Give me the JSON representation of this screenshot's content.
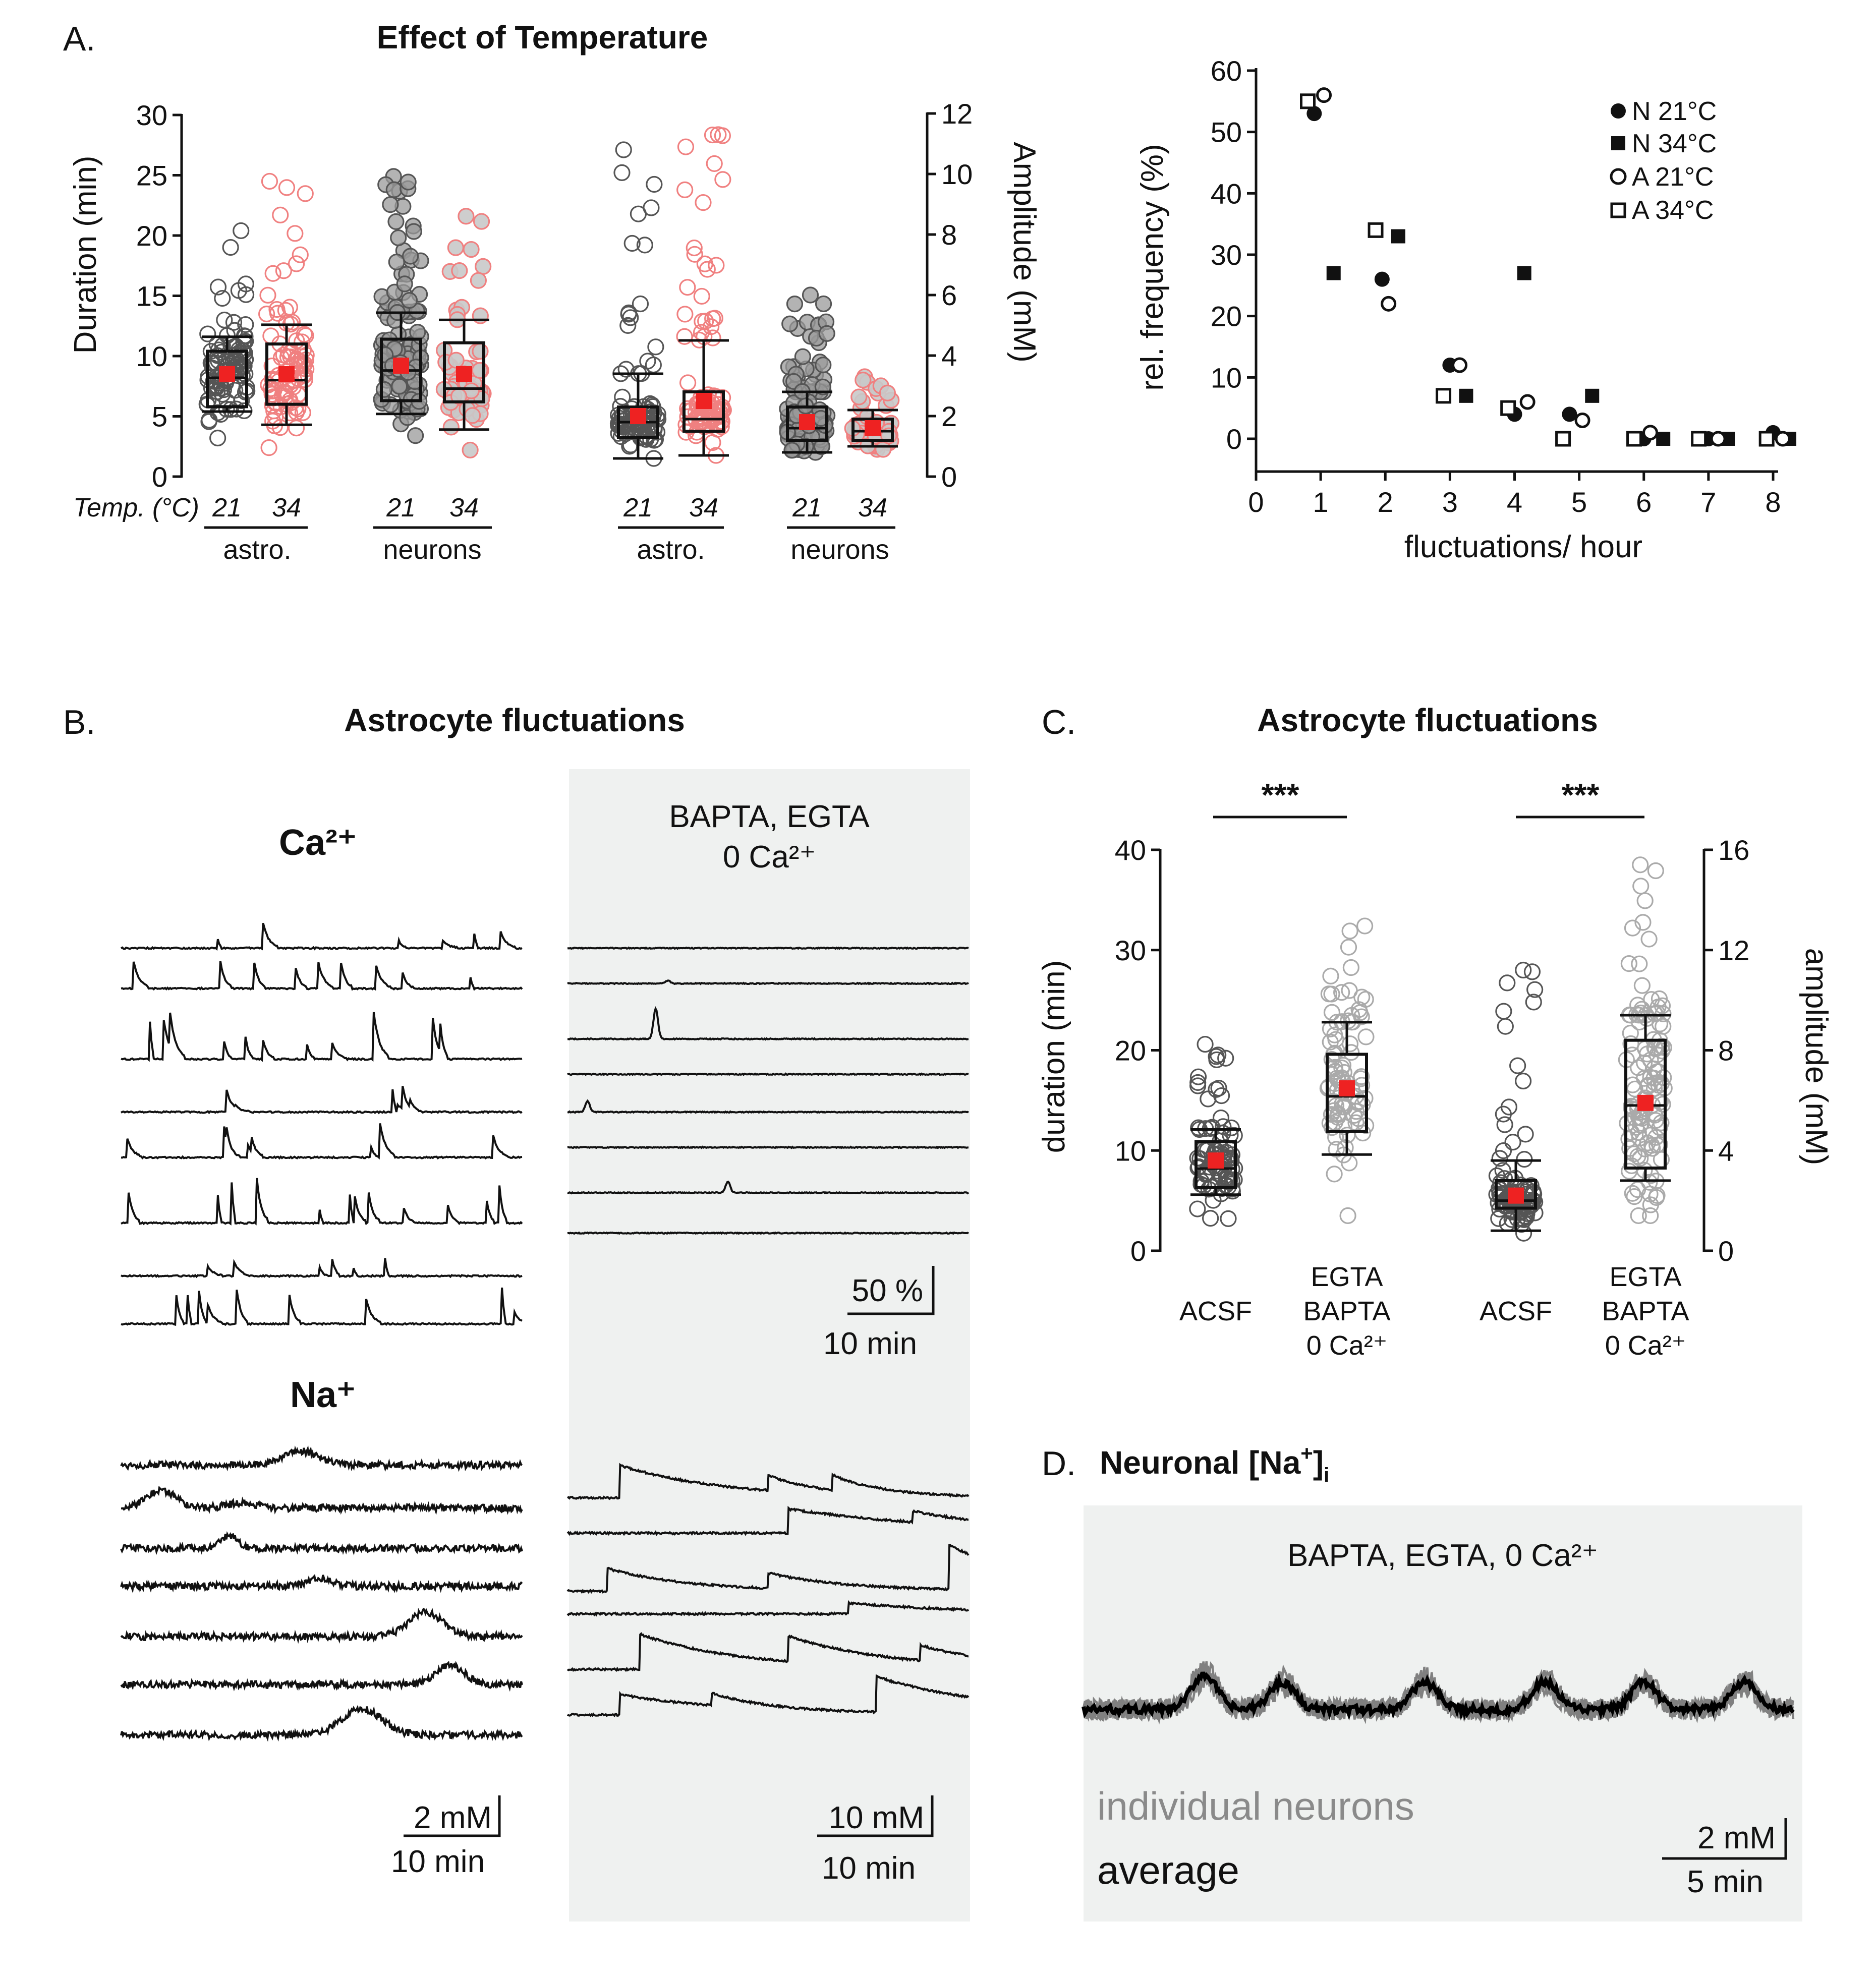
{
  "figure": {
    "panel_labels": [
      "A.",
      "B.",
      "C.",
      "D."
    ]
  },
  "panel_a": {
    "title": "Effect of Temperature",
    "temp_label": "Temp. (°C)",
    "temps": [
      "21",
      "34",
      "21",
      "34",
      "21",
      "34",
      "21",
      "34"
    ],
    "groups": [
      "astro.",
      "neurons",
      "astro.",
      "neurons"
    ]
  },
  "panel_b": {
    "title": "Astrocyte fluctuations",
    "ca_label": "Ca²⁺",
    "na_label": "Na⁺",
    "condition_line1": "BAPTA, EGTA",
    "condition_line2": "0 Ca²⁺",
    "scale_ca": [
      "50 %",
      "10 min"
    ],
    "scale_na_left": [
      "2 mM",
      "10 min"
    ],
    "scale_na_right": [
      "10 mM",
      "10 min"
    ]
  },
  "panel_c": {
    "title": "Astrocyte fluctuations",
    "sig": [
      "***",
      "***"
    ],
    "groups": [
      "ACSF",
      "EGTA\nBAPTA\n0 Ca²⁺",
      "ACSF",
      "EGTA\nBAPTA\n0 Ca²⁺"
    ]
  },
  "panel_d": {
    "title_prefix": "Neuronal [Na",
    "title_sup": "+",
    "title_mid": "]",
    "title_sub": "i",
    "condition": "BAPTA, EGTA, 0 Ca²⁺",
    "label_individual": "individual neurons",
    "label_average": "average",
    "scale": [
      "2 mM",
      "5 min"
    ]
  },
  "colors": {
    "black": "#111111",
    "red_mean": "#ee2222",
    "pink_points": "#f08080",
    "grey_points": "#999999",
    "shade_bg": "#eff1f0",
    "trace_grey": "#808080"
  },
  "chart_data": [
    {
      "id": "A1",
      "type": "box",
      "title": "Effect of Temperature",
      "ylabel": "Duration (min)",
      "ylim": [
        0,
        30
      ],
      "yticks": [
        0,
        5,
        10,
        15,
        20,
        25,
        30
      ],
      "categories": [
        "astro. 21",
        "astro. 34",
        "neurons 21",
        "neurons 34"
      ],
      "boxes": [
        {
          "q1": 5.8,
          "median": 8.2,
          "q3": 10.4,
          "whisker_low": 5.4,
          "whisker_high": 11.6,
          "mean": 8.5
        },
        {
          "q1": 6.0,
          "median": 8.0,
          "q3": 11.0,
          "whisker_low": 4.3,
          "whisker_high": 12.6,
          "mean": 8.5
        },
        {
          "q1": 6.3,
          "median": 8.8,
          "q3": 11.4,
          "whisker_low": 5.2,
          "whisker_high": 13.6,
          "mean": 9.2
        },
        {
          "q1": 6.2,
          "median": 7.3,
          "q3": 11.1,
          "whisker_low": 3.9,
          "whisker_high": 13.0,
          "mean": 8.5
        }
      ],
      "point_ranges": [
        [
          3.2,
          20.4
        ],
        [
          2.4,
          24.5
        ],
        [
          3.4,
          24.9
        ],
        [
          2.2,
          21.6
        ]
      ]
    },
    {
      "id": "A2",
      "type": "box",
      "ylabel": "Amplitude (mM)",
      "ylim": [
        0,
        12
      ],
      "yticks": [
        0,
        2,
        4,
        6,
        8,
        10,
        12
      ],
      "categories": [
        "astro. 21",
        "astro. 34",
        "neurons 21",
        "neurons 34"
      ],
      "boxes": [
        {
          "q1": 1.3,
          "median": 1.8,
          "q3": 2.3,
          "whisker_low": 0.6,
          "whisker_high": 3.4,
          "mean": 2.0
        },
        {
          "q1": 1.5,
          "median": 1.9,
          "q3": 2.8,
          "whisker_low": 0.7,
          "whisker_high": 4.5,
          "mean": 2.5
        },
        {
          "q1": 1.2,
          "median": 1.6,
          "q3": 2.3,
          "whisker_low": 0.8,
          "whisker_high": 2.8,
          "mean": 1.8
        },
        {
          "q1": 1.2,
          "median": 1.5,
          "q3": 1.9,
          "whisker_low": 1.0,
          "whisker_high": 2.2,
          "mean": 1.6
        }
      ],
      "point_ranges": [
        [
          0.6,
          10.8
        ],
        [
          0.7,
          11.3
        ],
        [
          0.8,
          6.0
        ],
        [
          0.9,
          3.3
        ]
      ]
    },
    {
      "id": "A3",
      "type": "scatter",
      "xlabel": "fluctuations/ hour",
      "ylabel": "rel. frequency (%)",
      "xlim": [
        0,
        8
      ],
      "ylim": [
        -5,
        60
      ],
      "xticks": [
        0,
        1,
        2,
        3,
        4,
        5,
        6,
        7,
        8
      ],
      "yticks": [
        0,
        10,
        20,
        30,
        40,
        50,
        60
      ],
      "legend_position": "top-right",
      "series": [
        {
          "name": "N 21°C",
          "marker": "filled-circle",
          "x": [
            0.9,
            1.95,
            3.0,
            4.0,
            4.85,
            6.0,
            7.0,
            8.0
          ],
          "y": [
            53,
            26,
            12,
            4,
            4,
            0,
            0,
            1
          ]
        },
        {
          "name": "N 34°C",
          "marker": "filled-square",
          "x": [
            1.2,
            2.2,
            3.25,
            4.15,
            5.2,
            6.3,
            7.3,
            8.25
          ],
          "y": [
            27,
            33,
            7,
            27,
            7,
            0,
            0,
            0
          ]
        },
        {
          "name": "A 21°C",
          "marker": "open-circle",
          "x": [
            1.05,
            2.05,
            3.15,
            4.2,
            5.05,
            6.1,
            7.15,
            8.15
          ],
          "y": [
            56,
            22,
            12,
            6,
            3,
            1,
            0,
            0
          ]
        },
        {
          "name": "A 34°C",
          "marker": "open-square",
          "x": [
            0.8,
            1.85,
            2.9,
            3.9,
            4.75,
            5.85,
            6.85,
            7.9
          ],
          "y": [
            55,
            34,
            7,
            5,
            0,
            0,
            0,
            0
          ]
        }
      ]
    },
    {
      "id": "C1",
      "type": "box",
      "title": "Astrocyte fluctuations",
      "ylabel": "duration (min)",
      "ylim": [
        0,
        40
      ],
      "yticks": [
        0,
        10,
        20,
        30,
        40
      ],
      "categories": [
        "ACSF",
        "EGTA BAPTA 0 Ca²⁺"
      ],
      "boxes": [
        {
          "q1": 6.3,
          "median": 8.2,
          "q3": 10.9,
          "whisker_low": 5.6,
          "whisker_high": 12.1,
          "mean": 9.0
        },
        {
          "q1": 11.9,
          "median": 15.4,
          "q3": 19.6,
          "whisker_low": 9.6,
          "whisker_high": 22.8,
          "mean": 16.2
        }
      ],
      "point_ranges": [
        [
          3.2,
          20.6
        ],
        [
          3.5,
          32.4
        ]
      ]
    },
    {
      "id": "C2",
      "type": "box",
      "ylabel": "amplitude (mM)",
      "ylim": [
        0,
        16
      ],
      "yticks": [
        0,
        4,
        8,
        12,
        16
      ],
      "categories": [
        "ACSF",
        "EGTA BAPTA 0 Ca²⁺"
      ],
      "boxes": [
        {
          "q1": 1.7,
          "median": 2.0,
          "q3": 2.8,
          "whisker_low": 0.8,
          "whisker_high": 3.6,
          "mean": 2.2
        },
        {
          "q1": 3.3,
          "median": 5.8,
          "q3": 8.4,
          "whisker_low": 2.8,
          "whisker_high": 9.4,
          "mean": 5.9
        }
      ],
      "point_ranges": [
        [
          0.7,
          11.2
        ],
        [
          1.4,
          15.4
        ]
      ]
    }
  ]
}
